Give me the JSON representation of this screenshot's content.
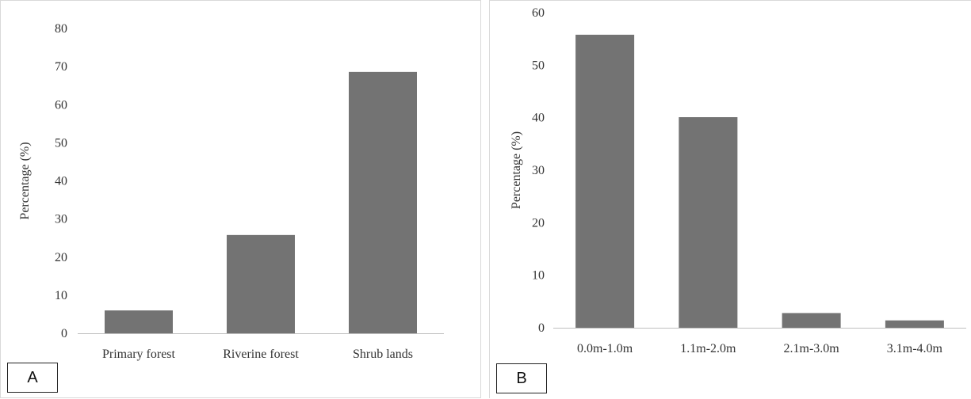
{
  "chart_data": [
    {
      "type": "bar",
      "panel_label": "A",
      "categories": [
        "Primary forest",
        "Riverine forest",
        "Shrub lands"
      ],
      "values": [
        6,
        25.8,
        68.6
      ],
      "ylabel": "Percentage (%)",
      "ylim": [
        0,
        80
      ],
      "yticks": [
        "0",
        "10",
        "20",
        "30",
        "40",
        "50",
        "60",
        "70",
        "80"
      ],
      "bar_color": "#737373",
      "grid": false
    },
    {
      "type": "bar",
      "panel_label": "B",
      "categories": [
        "0.0m-1.0m",
        "1.1m-2.0m",
        "2.1m-3.0m",
        "3.1m-4.0m"
      ],
      "values": [
        55.8,
        40.1,
        2.8,
        1.4
      ],
      "ylabel": "Percentage (%)",
      "ylim": [
        0,
        60
      ],
      "yticks": [
        "0",
        "10",
        "20",
        "30",
        "40",
        "50",
        "60"
      ],
      "bar_color": "#737373",
      "grid": false
    }
  ]
}
